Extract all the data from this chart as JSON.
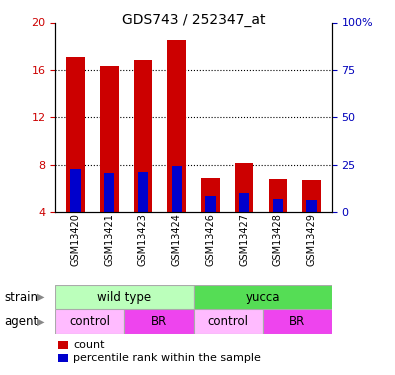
{
  "title": "GDS743 / 252347_at",
  "categories": [
    "GSM13420",
    "GSM13421",
    "GSM13423",
    "GSM13424",
    "GSM13426",
    "GSM13427",
    "GSM13428",
    "GSM13429"
  ],
  "count_values": [
    17.1,
    16.3,
    16.8,
    18.5,
    6.9,
    8.1,
    6.8,
    6.7
  ],
  "percentile_values": [
    7.6,
    7.3,
    7.4,
    7.9,
    5.3,
    5.6,
    5.1,
    5.0
  ],
  "count_color": "#cc0000",
  "percentile_color": "#0000cc",
  "bar_bottom": 4.0,
  "ylim_left": [
    4,
    20
  ],
  "yticks_left": [
    4,
    8,
    12,
    16,
    20
  ],
  "yticks_right": [
    0,
    25,
    50,
    75,
    100
  ],
  "ytick_labels_right": [
    "0",
    "25",
    "50",
    "75",
    "100%"
  ],
  "strain_labels": [
    "wild type",
    "yucca"
  ],
  "strain_colors": [
    "#bbffbb",
    "#55dd55"
  ],
  "agent_colors_list": [
    "#ffbbff",
    "#ee44ee",
    "#ffbbff",
    "#ee44ee"
  ],
  "agent_labels": [
    "control",
    "BR",
    "control",
    "BR"
  ],
  "axis_label_color_left": "#cc0000",
  "axis_label_color_right": "#0000bb",
  "bar_width": 0.55,
  "grey_bg": "#d0d0d0"
}
